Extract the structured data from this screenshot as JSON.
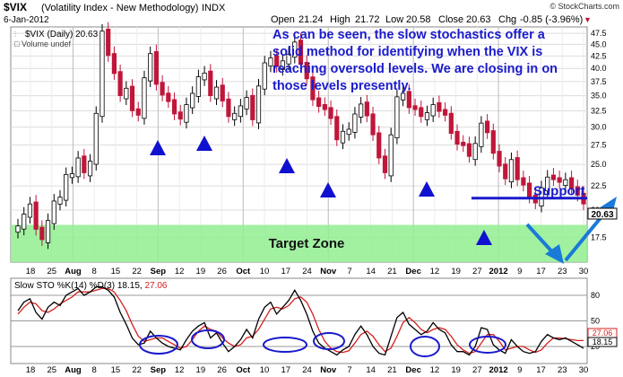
{
  "header": {
    "symbol": "$VIX",
    "name": "(Volatility Index - New Methodology)",
    "exchange": "INDX",
    "watermark": "© StockCharts.com",
    "date": "6-Jan-2012",
    "open_label": "Open",
    "open": "21.24",
    "high_label": "High",
    "high": "21.72",
    "low_label": "Low",
    "low": "20.58",
    "close_label": "Close",
    "close": "20.63",
    "chg_label": "Chg",
    "chg": "-0.85 (-3.96%)",
    "chg_arrow": "▼"
  },
  "legend": {
    "price": "$VIX (Daily) 20.63",
    "volume": "Volume undef"
  },
  "annotation": "As can be seen, the slow stochastics offer a solid method for identifying when the VIX is reaching oversold levels. We are closing in on those levels presently.",
  "target_zone_label": "Target Zone",
  "support_label": "Support",
  "last_price_tag": "20.63",
  "stoch_legend": {
    "label": "Slow STO %K(14) %D(3)",
    "k": "18.15",
    "d": "27.06"
  },
  "stoch_tags": {
    "d": "27.06",
    "k": "18.15"
  },
  "colors": {
    "up": "#ffffff",
    "down": "#c0163a",
    "annotation": "#1a1acc",
    "zone": "#90ee90",
    "support_line": "#1a1acc",
    "d_line": "#d42020",
    "k_line": "#000000"
  },
  "chart_data": [
    {
      "type": "candlestick",
      "title": "$VIX (Volatility Index - New Methodology) INDX",
      "ylim": [
        15.5,
        49
      ],
      "scale": "log",
      "y_ticks": [
        "17.5",
        "20.0",
        "22.5",
        "25.0",
        "27.5",
        "30.0",
        "32.5",
        "35.0",
        "37.5",
        "40.0",
        "42.5",
        "45.0",
        "47.5"
      ],
      "x_ticks": [
        "18",
        "25",
        "Aug",
        "8",
        "15",
        "22",
        "Sep",
        "12",
        "19",
        "26",
        "Oct",
        "10",
        "17",
        "24",
        "Nov",
        "7",
        "14",
        "21",
        "Dec",
        "12",
        "19",
        "27",
        "2012",
        "9",
        "17",
        "23",
        "30"
      ],
      "x_tick_bold": [
        "Aug",
        "Sep",
        "Oct",
        "Nov",
        "Dec",
        "2012"
      ],
      "target_zone": [
        15.5,
        18.6
      ],
      "support_level": 21.2,
      "close_path": [
        18.5,
        19.6,
        20.6,
        18.2,
        17.3,
        19.0,
        20.9,
        21.3,
        23.8,
        23.9,
        25.8,
        24.0,
        25.4,
        32.1,
        48.0,
        42.6,
        39.0,
        35.0,
        36.3,
        32.5,
        31.8,
        38.2,
        43.0,
        37.0,
        35.1,
        34.0,
        32.0,
        31.2,
        33.5,
        35.4,
        38.4,
        39.1,
        35.0,
        36.5,
        34.1,
        31.6,
        32.1,
        33.3,
        34.7,
        31.1,
        36.7,
        41.1,
        42.1,
        40.4,
        41.5,
        42.9,
        45.5,
        40.8,
        38.0,
        34.3,
        33.2,
        32.7,
        31.3,
        28.2,
        29.4,
        29.7,
        32.0,
        33.6,
        31.7,
        28.9,
        25.8,
        24.0,
        28.9,
        34.8,
        35.4,
        33.0,
        32.7,
        31.6,
        32.2,
        33.5,
        32.4,
        31.8,
        29.1,
        27.6,
        27.4,
        26.0,
        27.7,
        30.6,
        29.2,
        26.4,
        24.8,
        23.3,
        25.6,
        23.2,
        22.6,
        21.3,
        20.7,
        22.3,
        23.5,
        23.2,
        22.9,
        23.2,
        22.2,
        21.5,
        20.6
      ],
      "up_down": [
        "u",
        "u",
        "u",
        "d",
        "d",
        "u",
        "u",
        "u",
        "u",
        "u",
        "u",
        "d",
        "u",
        "u",
        "u",
        "d",
        "d",
        "d",
        "u",
        "d",
        "d",
        "u",
        "u",
        "d",
        "d",
        "d",
        "d",
        "d",
        "u",
        "u",
        "u",
        "u",
        "d",
        "u",
        "d",
        "d",
        "u",
        "u",
        "u",
        "d",
        "u",
        "u",
        "u",
        "d",
        "u",
        "u",
        "u",
        "d",
        "d",
        "d",
        "d",
        "d",
        "d",
        "d",
        "u",
        "u",
        "u",
        "u",
        "d",
        "d",
        "d",
        "d",
        "u",
        "u",
        "u",
        "d",
        "d",
        "d",
        "u",
        "u",
        "d",
        "d",
        "d",
        "d",
        "d",
        "d",
        "u",
        "u",
        "d",
        "d",
        "d",
        "d",
        "u",
        "d",
        "d",
        "d",
        "d",
        "u",
        "u",
        "d",
        "d",
        "u",
        "d",
        "d",
        "d"
      ],
      "oversold_markers": [
        "Sep 6",
        "Sep 20",
        "Oct 13",
        "Oct 28",
        "Dec 1",
        "Dec 29"
      ]
    },
    {
      "type": "line",
      "title": "Slow STO %K(14) %D(3)",
      "ylim": [
        0,
        100
      ],
      "y_ticks": [
        "20",
        "50",
        "80"
      ],
      "series": [
        {
          "name": "%K(14)",
          "values": [
            62,
            72,
            76,
            60,
            52,
            66,
            72,
            68,
            80,
            84,
            88,
            80,
            84,
            90,
            90,
            86,
            78,
            60,
            46,
            30,
            22,
            24,
            38,
            30,
            24,
            20,
            18,
            16,
            28,
            38,
            44,
            48,
            30,
            36,
            24,
            14,
            20,
            28,
            40,
            30,
            52,
            66,
            72,
            58,
            66,
            74,
            86,
            74,
            58,
            38,
            24,
            18,
            14,
            10,
            16,
            20,
            34,
            44,
            34,
            20,
            12,
            10,
            32,
            54,
            60,
            46,
            40,
            34,
            38,
            48,
            40,
            36,
            22,
            14,
            14,
            10,
            20,
            42,
            40,
            22,
            16,
            12,
            28,
            20,
            14,
            12,
            14,
            26,
            34,
            30,
            28,
            30,
            26,
            22,
            18
          ]
        },
        {
          "name": "%D(3)",
          "values": [
            58,
            66,
            72,
            70,
            62,
            60,
            64,
            70,
            74,
            78,
            84,
            84,
            84,
            86,
            88,
            88,
            84,
            74,
            62,
            46,
            32,
            26,
            28,
            30,
            30,
            26,
            22,
            18,
            20,
            28,
            38,
            44,
            40,
            38,
            30,
            24,
            20,
            22,
            30,
            32,
            40,
            52,
            64,
            66,
            64,
            68,
            76,
            78,
            72,
            58,
            40,
            26,
            18,
            14,
            13,
            15,
            24,
            34,
            38,
            32,
            22,
            14,
            18,
            32,
            48,
            54,
            48,
            40,
            36,
            40,
            42,
            40,
            32,
            22,
            16,
            12,
            14,
            24,
            34,
            34,
            26,
            16,
            18,
            20,
            20,
            16,
            13,
            16,
            24,
            30,
            30,
            29,
            28,
            27,
            27
          ]
        }
      ],
      "oversold_circles": [
        "Sep",
        "Sep 19",
        "Oct 17",
        "Nov",
        "Dec",
        "Dec 27"
      ]
    }
  ]
}
